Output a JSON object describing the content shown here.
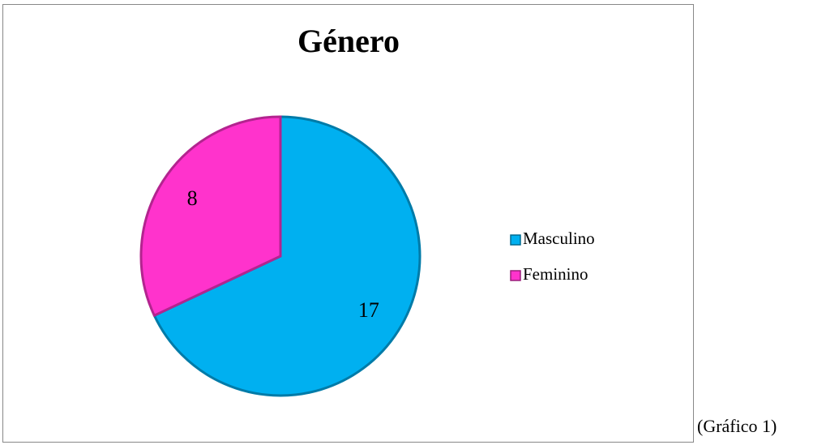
{
  "chart_data": {
    "type": "pie",
    "title": "Género",
    "categories": [
      "Masculino",
      "Feminino"
    ],
    "values": [
      17,
      8
    ],
    "colors": [
      "#00b0f0",
      "#ff33cc"
    ],
    "legend": "right"
  },
  "caption": "(Gráfico 1)"
}
